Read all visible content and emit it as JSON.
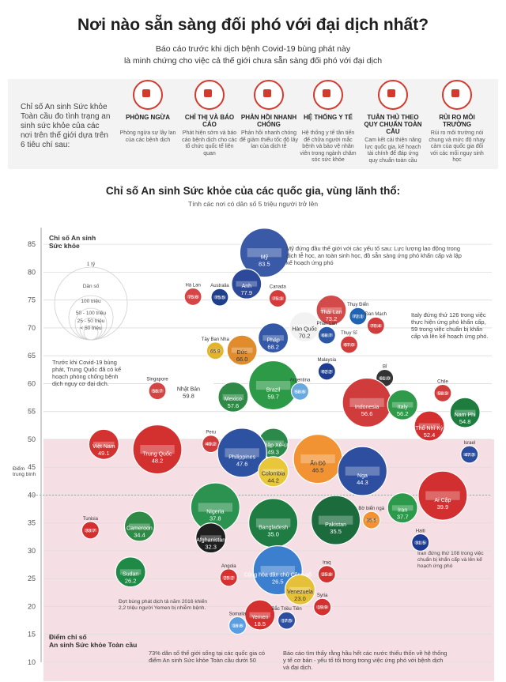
{
  "header": {
    "title": "Nơi nào sẵn sàng đối phó với đại dịch nhất?",
    "subtitle_line1": "Báo cáo trước khi dịch bệnh Covid-19 bùng phát này",
    "subtitle_line2": "là minh chứng cho việc cả thế giới chưa sẵn sàng đối phó với đại dịch"
  },
  "index_panel": {
    "intro": "Chỉ số An sinh Sức khỏe Toàn cầu đo tình trạng an sinh sức khỏe của các nơi trên thế giới dựa trên 6 tiêu chí sau:",
    "criteria": [
      {
        "title": "PHÒNG NGỪA",
        "desc": "Phòng ngừa sự lây lan của các bệnh dịch",
        "icon": "shield-cross-icon"
      },
      {
        "title": "CHỈ THỊ VÀ BÁO CÁO",
        "desc": "Phát hiện sớm và báo cáo bệnh dịch cho các tổ chức quốc tế liên quan",
        "icon": "virus-gear-icon"
      },
      {
        "title": "PHẢN HỒI NHANH CHÓNG",
        "desc": "Phản hồi nhanh chóng để giảm thiểu tốc độ lây lan của dịch tễ",
        "icon": "stopwatch-icon"
      },
      {
        "title": "HỆ THỐNG Y TẾ",
        "desc": "Hệ thống y tế tân tiến để chữa người mắc bệnh và bảo vệ nhân viên trong ngành chăm sóc sức khỏe",
        "icon": "nurse-icon"
      },
      {
        "title": "TUÂN THỦ THEO QUY CHUẨN TOÀN CẦU",
        "desc": "Cam kết cải thiện năng lực quốc gia, kế hoạch tài chính để đáp ứng quy chuẩn toàn cầu",
        "icon": "checklist-icon"
      },
      {
        "title": "RỦI RO MÔI TRƯỜNG",
        "desc": "Rủi ro môi trường nói chung và mức độ nhạy cảm của quốc gia đối với các mối nguy sinh học",
        "icon": "warning-icon"
      }
    ]
  },
  "chart_title": "Chỉ số An sinh Sức khỏe của các quốc gia, vùng lãnh thổ:",
  "chart_subtitle": "Tính các nơi có dân số 5 triệu người trở lên",
  "axis": {
    "y_top_label_1": "Chỉ số An sinh",
    "y_top_label_2": "Sức khỏe",
    "y_bottom_label_1": "Điểm chỉ số",
    "y_bottom_label_2": "An sinh Sức khỏe Toàn cầu",
    "midpoint_label_1": "Điểm",
    "midpoint_label_2": "trung bình"
  },
  "legend": {
    "title_top": "1 tỷ",
    "entries": [
      "Dân số",
      "100 triệu",
      "50 - 100 triệu",
      "25 - 50 triệu",
      "< 50 triệu"
    ]
  },
  "annotations": {
    "usa": "Mỹ đứng đầu thế giới với các yếu tố sau: Lực lượng lao động trong dịch tễ học, an toàn sinh học, đồ sẵn sàng ứng phó khẩn cấp và lập kế hoạch ứng phó",
    "italy": "Italy đứng thứ 126 trong việc thực hiện ứng phó khẩn cấp, 59 trong việc chuẩn bị khẩn cấp và lên kế hoạch ứng phó.",
    "china": "Trước khi Covid-19 bùng phát, Trung Quốc đã có kế hoạch phòng chống bệnh dịch nguy cơ đại dịch.",
    "iran": "Iran đứng thứ 108 trong việc chuẩn bị khẩn cấp và lên kế hoạch ứng phó",
    "yemen": "Đợt bùng phát dịch tả năm 2016 khiến 2,2 triệu người Yemen bị nhiễm bệnh.",
    "bottom_left": "73% dân số thế giới sống tại các quốc gia có điểm An sinh Sức khỏe Toàn cầu dưới 50",
    "bottom_right": "Báo cáo tìm thấy rằng hầu hết các nước thiếu thốn về hệ thống y tế cơ bản - yếu tố tối trong trong việc ứng phó với bệnh dịch và đại dịch."
  },
  "chart_data": {
    "type": "scatter",
    "title": "Chỉ số An sinh Sức khỏe của các quốc gia, vùng lãnh thổ:",
    "subtitle": "Tính các nơi có dân số 5 triệu người trở lên",
    "ylabel": "Chỉ số An sinh Sức khỏe",
    "ylim": [
      10,
      88
    ],
    "yticks": [
      10,
      15,
      20,
      25,
      30,
      35,
      40,
      45,
      50,
      55,
      60,
      65,
      70,
      75,
      80,
      85
    ],
    "midpoint": 40,
    "points": [
      {
        "name": "Mỹ",
        "value": 83.5,
        "size": "large",
        "color": "#3a5aa8",
        "col": 0.49
      },
      {
        "name": "Anh",
        "value": 77.9,
        "size": "medium",
        "color": "#2d4a9a",
        "col": 0.45
      },
      {
        "name": "Hà Lan",
        "value": 75.6,
        "size": "small",
        "color": "#d64545",
        "col": 0.33
      },
      {
        "name": "Australia",
        "value": 75.5,
        "size": "small",
        "color": "#1f3f8a",
        "col": 0.39
      },
      {
        "name": "Canada",
        "value": 75.3,
        "size": "small",
        "color": "#d53b3b",
        "col": 0.52
      },
      {
        "name": "Thái Lan",
        "value": 73.2,
        "size": "medium",
        "color": "#d24a4a",
        "col": 0.64
      },
      {
        "name": "Thụy Điển",
        "value": 72.1,
        "size": "small",
        "color": "#1f63b3",
        "col": 0.7
      },
      {
        "name": "Hàn Quốc",
        "value": 70.2,
        "size": "medium",
        "color": "#f2f2f2",
        "col": 0.58
      },
      {
        "name": "Đan Mạch",
        "value": 70.4,
        "size": "small",
        "color": "#d33c3c",
        "col": 0.74
      },
      {
        "name": "Pháp",
        "value": 68.2,
        "size": "medium",
        "color": "#3458a8",
        "col": 0.51
      },
      {
        "name": "Tây Ban Nha",
        "value": 65.9,
        "size": "small",
        "color": "#e3b52d",
        "col": 0.38
      },
      {
        "name": "Đức",
        "value": 66.0,
        "size": "medium",
        "color": "#e08b2c",
        "col": 0.44
      },
      {
        "name": "Phần Lan",
        "value": 68.7,
        "size": "small",
        "color": "#2b57a6",
        "col": 0.63
      },
      {
        "name": "Thụy Sĩ",
        "value": 67.0,
        "size": "small",
        "color": "#d23c3c",
        "col": 0.68
      },
      {
        "name": "Nhật Bản",
        "value": 59.8,
        "size": "large",
        "color": "#ffffff",
        "col": 0.32
      },
      {
        "name": "Singapore",
        "value": 58.7,
        "size": "small",
        "color": "#d44444",
        "col": 0.25
      },
      {
        "name": "Mexico",
        "value": 57.6,
        "size": "medium",
        "color": "#2e8a46",
        "col": 0.42
      },
      {
        "name": "Brazil",
        "value": 59.7,
        "size": "large",
        "color": "#2c9a47",
        "col": 0.51
      },
      {
        "name": "Argentina",
        "value": 58.6,
        "size": "small",
        "color": "#69a9dd",
        "col": 0.57
      },
      {
        "name": "Malaysia",
        "value": 62.2,
        "size": "small",
        "color": "#1e3d92",
        "col": 0.63
      },
      {
        "name": "Bỉ",
        "value": 61.0,
        "size": "small",
        "color": "#333333",
        "col": 0.76
      },
      {
        "name": "Ả Rập Xê-út",
        "value": 49.3,
        "size": "medium",
        "color": "#2b8a4a",
        "col": 0.51
      },
      {
        "name": "Indonesia",
        "value": 56.6,
        "size": "large",
        "color": "#d03c3c",
        "col": 0.72
      },
      {
        "name": "Italy",
        "value": 56.2,
        "size": "medium",
        "color": "#2e9a4a",
        "col": 0.8
      },
      {
        "name": "Chile",
        "value": 58.3,
        "size": "small",
        "color": "#d03c3c",
        "col": 0.89
      },
      {
        "name": "Nam Phi",
        "value": 54.8,
        "size": "medium",
        "color": "#1e7d3e",
        "col": 0.94
      },
      {
        "name": "Việt Nam",
        "value": 49.1,
        "size": "medium",
        "color": "#d43131",
        "col": 0.13
      },
      {
        "name": "Trung Quốc",
        "value": 48.2,
        "size": "large",
        "color": "#d33030",
        "col": 0.25
      },
      {
        "name": "Peru",
        "value": 49.2,
        "size": "small",
        "color": "#d03c3c",
        "col": 0.37
      },
      {
        "name": "Philippines",
        "value": 47.6,
        "size": "large",
        "color": "#2e52a2",
        "col": 0.44
      },
      {
        "name": "Colombia",
        "value": 44.2,
        "size": "medium",
        "color": "#e8c73a",
        "col": 0.51
      },
      {
        "name": "Ấn Độ",
        "value": 46.5,
        "size": "large",
        "color": "#f19332",
        "col": 0.61
      },
      {
        "name": "Nga",
        "value": 44.3,
        "size": "large",
        "color": "#2e4fa0",
        "col": 0.71
      },
      {
        "name": "Thổ Nhĩ Kỳ",
        "value": 52.4,
        "size": "medium",
        "color": "#d53030",
        "col": 0.86
      },
      {
        "name": "Israel",
        "value": 47.3,
        "size": "small",
        "color": "#2b4d9e",
        "col": 0.95
      },
      {
        "name": "Nigeria",
        "value": 37.8,
        "size": "large",
        "color": "#2c9250",
        "col": 0.38
      },
      {
        "name": "Bangladesh",
        "value": 35.0,
        "size": "large",
        "color": "#1f7d43",
        "col": 0.51
      },
      {
        "name": "Pakistan",
        "value": 35.5,
        "size": "large",
        "color": "#1c6b3d",
        "col": 0.65
      },
      {
        "name": "Bờ biển ngà",
        "value": 35.5,
        "size": "small",
        "color": "#f19332",
        "col": 0.73
      },
      {
        "name": "Iran",
        "value": 37.7,
        "size": "medium",
        "color": "#2c9a4a",
        "col": 0.8
      },
      {
        "name": "Ai Cập",
        "value": 39.9,
        "size": "large",
        "color": "#d23030",
        "col": 0.89
      },
      {
        "name": "Afghanistan",
        "value": 32.3,
        "size": "medium",
        "color": "#1f1f1f",
        "col": 0.37
      },
      {
        "name": "Tunisia",
        "value": 33.7,
        "size": "small",
        "color": "#d43030",
        "col": 0.1
      },
      {
        "name": "Cameroon",
        "value": 34.4,
        "size": "medium",
        "color": "#2e8a46",
        "col": 0.21
      },
      {
        "name": "Haiti",
        "value": 31.5,
        "size": "small",
        "color": "#1d3b92",
        "col": 0.84
      },
      {
        "name": "Sudan",
        "value": 26.2,
        "size": "medium",
        "color": "#1f8a46",
        "col": 0.19
      },
      {
        "name": "Angola",
        "value": 25.2,
        "size": "small",
        "color": "#d63030",
        "col": 0.41
      },
      {
        "name": "Cộng hòa dân chủ Công gô",
        "value": 26.5,
        "size": "large",
        "color": "#3d7fcf",
        "col": 0.52
      },
      {
        "name": "Venezuela",
        "value": 23.0,
        "size": "medium",
        "color": "#e5c13a",
        "col": 0.57
      },
      {
        "name": "Iraq",
        "value": 25.8,
        "size": "small",
        "color": "#d33030",
        "col": 0.63
      },
      {
        "name": "Yemen",
        "value": 18.5,
        "size": "medium",
        "color": "#d43030",
        "col": 0.48
      },
      {
        "name": "Syria",
        "value": 19.9,
        "size": "small",
        "color": "#d43030",
        "col": 0.62
      },
      {
        "name": "Somalia",
        "value": 16.6,
        "size": "small",
        "color": "#5a9de0",
        "col": 0.43
      },
      {
        "name": "Bắc Triều Tiên",
        "value": 17.5,
        "size": "small",
        "color": "#2c4da0",
        "col": 0.54
      }
    ]
  }
}
